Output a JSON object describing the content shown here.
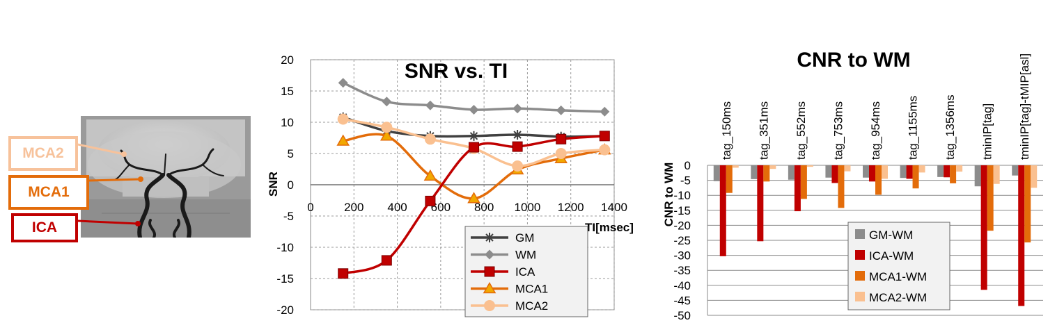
{
  "colors": {
    "GM": "#404040",
    "WM": "#8c8c8c",
    "ICA": "#c00000",
    "MCA1": "#e36c0a",
    "MCA2": "#fac090"
  },
  "angiogram": {
    "labels": [
      {
        "key": "MCA2",
        "text": "MCA2",
        "color": "#f7c29b"
      },
      {
        "key": "MCA1",
        "text": "MCA1",
        "color": "#e36c0a"
      },
      {
        "key": "ICA",
        "text": "ICA",
        "color": "#c00000"
      }
    ]
  },
  "chart_data": [
    {
      "type": "line",
      "title": "SNR vs. TI",
      "xlabel": "TI[msec]",
      "ylabel": "SNR",
      "xlim": [
        0,
        1400
      ],
      "ylim": [
        -20,
        20
      ],
      "xticks": [
        "0",
        "200",
        "400",
        "600",
        "800",
        "1000",
        "1200",
        "1400"
      ],
      "yticks": [
        "20",
        "15",
        "10",
        "5",
        "0",
        "-5",
        "-10",
        "-15",
        "-20"
      ],
      "grid": true,
      "legend_position": "bottom-right",
      "x": [
        150,
        351,
        552,
        753,
        954,
        1155,
        1356
      ],
      "series": [
        {
          "name": "GM",
          "marker": "asterisk",
          "values": [
            10.8,
            8.6,
            7.8,
            7.8,
            8.0,
            7.7,
            7.8
          ]
        },
        {
          "name": "WM",
          "marker": "diamond",
          "values": [
            16.3,
            13.3,
            12.7,
            12.0,
            12.2,
            11.9,
            11.7
          ]
        },
        {
          "name": "ICA",
          "marker": "square",
          "values": [
            -14.2,
            -12.1,
            -2.6,
            6.0,
            6.1,
            7.3,
            7.8
          ]
        },
        {
          "name": "MCA1",
          "marker": "triangle",
          "values": [
            7.0,
            7.8,
            1.4,
            -2.2,
            2.4,
            4.2,
            5.6
          ]
        },
        {
          "name": "MCA2",
          "marker": "circle",
          "values": [
            10.5,
            9.2,
            7.3,
            5.8,
            3.0,
            5.0,
            5.6
          ]
        }
      ]
    },
    {
      "type": "bar",
      "title": "CNR to WM",
      "ylabel": "CNR to WM",
      "ylim": [
        -50,
        0
      ],
      "yticks": [
        "0",
        "-5",
        "-10",
        "-15",
        "-20",
        "-25",
        "-30",
        "-35",
        "-40",
        "-45",
        "-50"
      ],
      "grid": true,
      "legend_position": "bottom-center",
      "categories": [
        "tag_150ms",
        "tag_351ms",
        "tag_552ms",
        "tag_753ms",
        "tag_954ms",
        "tag_1155ms",
        "tag_1356ms",
        "tminIP[tag]",
        "tminIP[tag]-tMIP[asl]"
      ],
      "series": [
        {
          "name": "GM-WM",
          "values": [
            -5.3,
            -4.6,
            -4.8,
            -4.1,
            -4.1,
            -4.2,
            -3.9,
            -7.0,
            -3.4
          ]
        },
        {
          "name": "ICA-WM",
          "values": [
            -30.3,
            -25.3,
            -15.3,
            -5.9,
            -5.4,
            -4.5,
            -4.0,
            -41.5,
            -46.9
          ]
        },
        {
          "name": "MCA1-WM",
          "values": [
            -9.2,
            -5.4,
            -11.2,
            -14.2,
            -9.8,
            -7.7,
            -6.0,
            -21.8,
            -25.7
          ]
        },
        {
          "name": "MCA2-WM",
          "values": [
            -0.8,
            -1.2,
            -0.5,
            -2.0,
            -4.5,
            -2.4,
            -2.1,
            -6.2,
            -7.5
          ]
        }
      ]
    }
  ]
}
